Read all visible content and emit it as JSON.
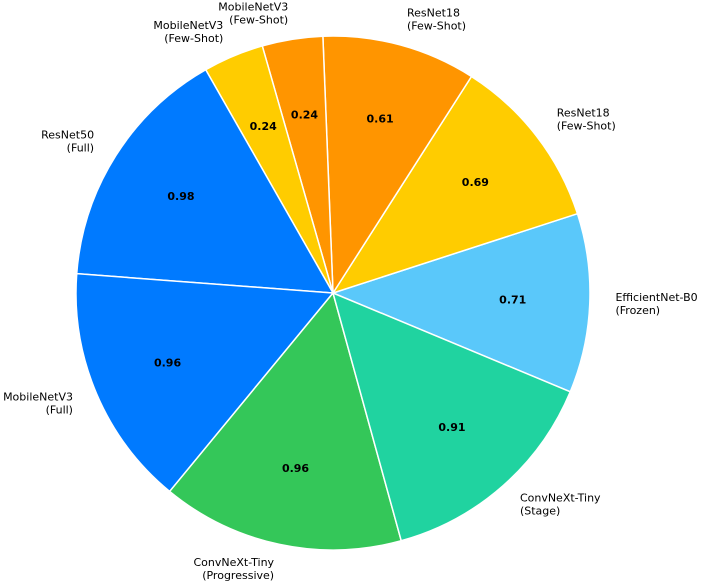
{
  "chart_data": {
    "type": "pie",
    "categories": [
      "EfficientNet-B0\n(Frozen)",
      "ResNet18\n(Few-Shot)",
      "ResNet18\n(Few-Shot)",
      "MobileNetV3\n(Few-Shot)",
      "MobileNetV3\n(Few-Shot)",
      "ResNet50\n(Full)",
      "MobileNetV3\n(Full)",
      "ConvNeXt-Tiny\n(Progressive)",
      "ConvNeXt-Tiny\n(Stage)"
    ],
    "values": [
      0.71,
      0.69,
      0.61,
      0.24,
      0.24,
      0.98,
      0.96,
      0.96,
      0.91
    ],
    "colors": [
      "#5ac8fa",
      "#ffcc00",
      "#ff9500",
      "#ff9500",
      "#ffcc00",
      "#007aff",
      "#007aff",
      "#34c759",
      "#20d3a0"
    ]
  }
}
